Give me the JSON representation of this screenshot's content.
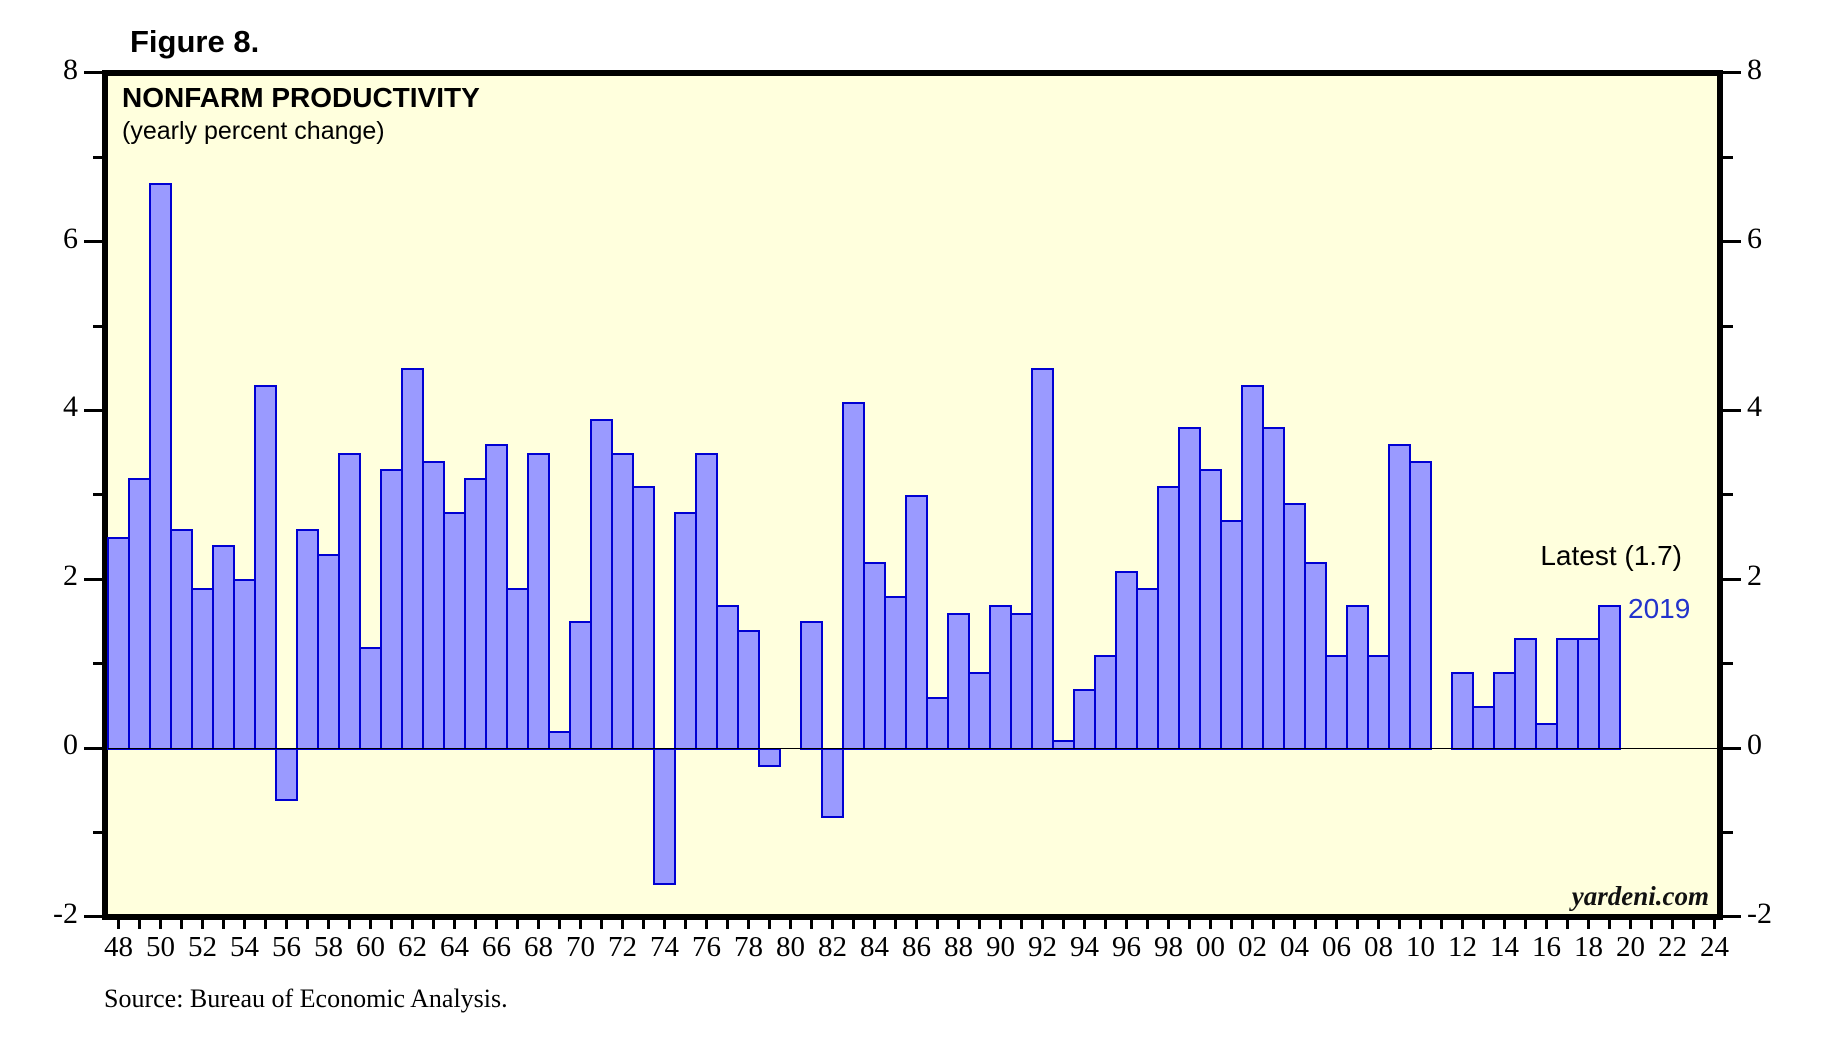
{
  "figure_label": "Figure 8.",
  "source_note": "Source: Bureau of Economic Analysis.",
  "colors": {
    "bar_fill": "#9a9aff",
    "bar_border": "#0000d2",
    "plot_bg": "#ffffdd",
    "annotation_blue": "#2233cc",
    "axis_text": "#000000"
  },
  "chart_data": {
    "type": "bar",
    "title": "NONFARM PRODUCTIVITY",
    "subtitle": "(yearly percent change)",
    "xlabel": "",
    "ylabel": "",
    "ylim": [
      -2,
      8
    ],
    "x_range_years": [
      1948,
      2024
    ],
    "grid": "off",
    "legend_position": "none",
    "years": [
      1948,
      1949,
      1950,
      1951,
      1952,
      1953,
      1954,
      1955,
      1956,
      1957,
      1958,
      1959,
      1960,
      1961,
      1962,
      1963,
      1964,
      1965,
      1966,
      1967,
      1968,
      1969,
      1970,
      1971,
      1972,
      1973,
      1974,
      1975,
      1976,
      1977,
      1978,
      1979,
      1980,
      1981,
      1982,
      1983,
      1984,
      1985,
      1986,
      1987,
      1988,
      1989,
      1990,
      1991,
      1992,
      1993,
      1994,
      1995,
      1996,
      1997,
      1998,
      1999,
      2000,
      2001,
      2002,
      2003,
      2004,
      2005,
      2006,
      2007,
      2008,
      2009,
      2010,
      2011,
      2012,
      2013,
      2014,
      2015,
      2016,
      2017,
      2018,
      2019
    ],
    "values": [
      2.5,
      3.2,
      6.7,
      2.6,
      1.9,
      2.4,
      2.0,
      4.3,
      -0.6,
      2.6,
      2.3,
      3.5,
      1.2,
      3.3,
      4.5,
      3.4,
      2.8,
      3.2,
      3.6,
      1.9,
      3.5,
      0.2,
      1.5,
      3.9,
      3.5,
      3.1,
      -1.6,
      2.8,
      3.5,
      1.7,
      1.4,
      -0.2,
      0.0,
      1.5,
      -0.8,
      4.1,
      2.2,
      1.8,
      3.0,
      0.6,
      1.6,
      0.9,
      1.7,
      1.6,
      4.5,
      0.1,
      0.7,
      1.1,
      2.1,
      1.9,
      3.1,
      3.8,
      3.3,
      2.7,
      4.3,
      3.8,
      2.9,
      2.2,
      1.1,
      1.7,
      1.1,
      3.6,
      3.4,
      0.0,
      0.9,
      0.5,
      0.9,
      1.3,
      0.3,
      1.3,
      1.3,
      1.7
    ],
    "y_axis": {
      "major_ticks": [
        8,
        6,
        4,
        2,
        0,
        -2
      ],
      "major_labels": [
        "8",
        "6",
        "4",
        "2",
        "0",
        "-2"
      ],
      "minor_ticks": [
        7,
        5,
        3,
        1,
        -1
      ]
    },
    "x_axis": {
      "tick_every_years": 1,
      "label_every_years": 2,
      "labels": [
        "48",
        "50",
        "52",
        "54",
        "56",
        "58",
        "60",
        "62",
        "64",
        "66",
        "68",
        "70",
        "72",
        "74",
        "76",
        "78",
        "80",
        "82",
        "84",
        "86",
        "88",
        "90",
        "92",
        "94",
        "96",
        "98",
        "00",
        "02",
        "04",
        "06",
        "08",
        "10",
        "12",
        "14",
        "16",
        "18",
        "20",
        "22",
        "24"
      ]
    },
    "annotations": {
      "latest_label": "Latest (1.7)",
      "latest_value": 1.7,
      "latest_year_label": "2019"
    },
    "watermark": "yardeni.com"
  }
}
